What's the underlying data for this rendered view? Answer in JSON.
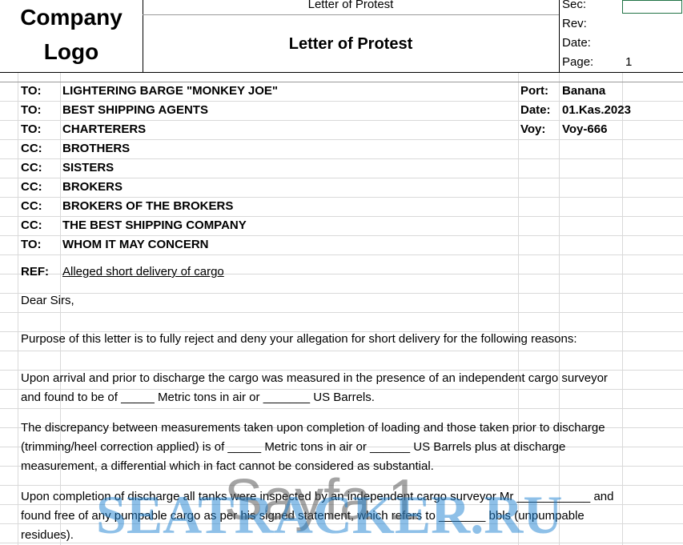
{
  "header": {
    "logo": [
      "Company",
      "Logo"
    ],
    "small_title": "Letter of Protest",
    "title": "Letter of Protest",
    "fields": [
      "Sec:",
      "Rev:",
      "Date:",
      "Page:"
    ],
    "page_value": "1"
  },
  "recipients": [
    {
      "role": "TO:",
      "name": "LIGHTERING BARGE \"MONKEY JOE\""
    },
    {
      "role": "TO:",
      "name": "BEST SHIPPING AGENTS"
    },
    {
      "role": "TO:",
      "name": "CHARTERERS"
    },
    {
      "role": "CC:",
      "name": "BROTHERS"
    },
    {
      "role": "CC:",
      "name": "SISTERS"
    },
    {
      "role": "CC:",
      "name": "BROKERS"
    },
    {
      "role": "CC:",
      "name": "BROKERS OF THE BROKERS"
    },
    {
      "role": "CC:",
      "name": "THE BEST SHIPPING COMPANY"
    },
    {
      "role": "TO:",
      "name": "WHOM IT MAY CONCERN"
    }
  ],
  "voyage": [
    {
      "label": "Port:",
      "value": "Banana"
    },
    {
      "label": "Date:",
      "value": "01.Kas.2023"
    },
    {
      "label": "Voy:",
      "value": "Voy-666"
    }
  ],
  "ref": {
    "label": "REF:",
    "text": "Alleged short delivery of cargo"
  },
  "body": [
    [
      "Dear Sirs,"
    ],
    [
      "Purpose of this letter is to fully reject and deny your allegation for short delivery for the following reasons:"
    ],
    [
      "Upon arrival and prior to discharge the cargo was measured in the presence of an independent cargo surveyor",
      "and found to be of _____ Metric tons in air or _______ US Barrels."
    ],
    [
      "The discrepancy between measurements taken upon completion of loading and those taken prior to discharge",
      "(trimming/heel correction applied) is of _____ Metric tons in air or ______ US Barrels plus at discharge",
      "measurement, a differential which in fact cannot be considered as substantial."
    ],
    [
      "Upon completion of discharge all tanks were inspected by an independent cargo surveyor Mr ___________ and",
      "found free of any pumpable cargo as per his signed statement, which refers to _______ bbls (unpumpable",
      "residues)."
    ]
  ],
  "watermark": [
    "Sayfa 1",
    "SEATRACKER.RU"
  ]
}
